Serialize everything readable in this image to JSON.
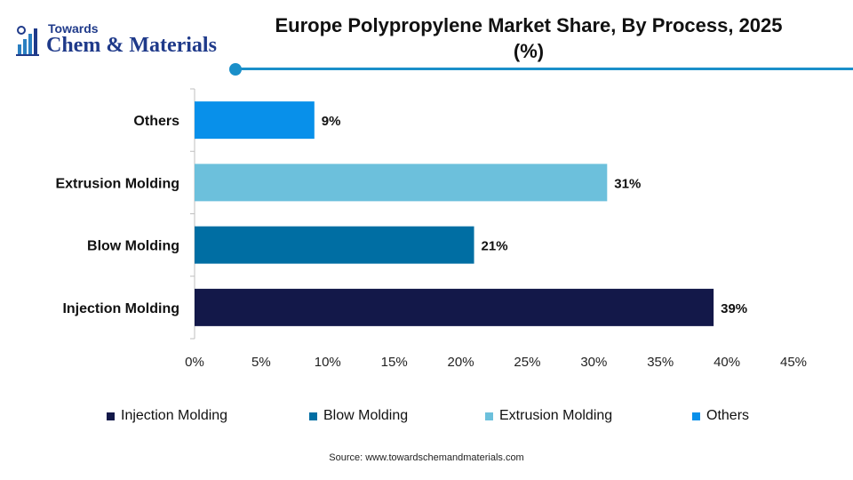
{
  "header": {
    "logo_top": "Towards",
    "logo_name": "Chem & Materials",
    "title": "Europe Polypropylene Market Share, By Process, 2025 (%)"
  },
  "chart_data": {
    "type": "bar",
    "orientation": "horizontal",
    "title": "Europe Polypropylene Market Share, By Process, 2025 (%)",
    "categories": [
      "Injection Molding",
      "Blow Molding",
      "Extrusion Molding",
      "Others"
    ],
    "values": [
      39,
      21,
      31,
      9
    ],
    "data_labels": [
      "39%",
      "21%",
      "31%",
      "9%"
    ],
    "colors": [
      "#131849",
      "#006ea3",
      "#6cc0dc",
      "#0890ea"
    ],
    "xlim": [
      0,
      45
    ],
    "xticks": [
      0,
      5,
      10,
      15,
      20,
      25,
      30,
      35,
      40,
      45
    ],
    "xtick_labels": [
      "0%",
      "5%",
      "10%",
      "15%",
      "20%",
      "25%",
      "30%",
      "35%",
      "40%",
      "45%"
    ],
    "xlabel": "",
    "ylabel": "",
    "grid": false,
    "legend_position": "bottom"
  },
  "legend": [
    {
      "label": "Injection Molding",
      "color": "#131849"
    },
    {
      "label": "Blow Molding",
      "color": "#006ea3"
    },
    {
      "label": "Extrusion Molding",
      "color": "#6cc0dc"
    },
    {
      "label": "Others",
      "color": "#0890ea"
    }
  ],
  "footer": {
    "source": "Source: www.towardschemandmaterials.com"
  }
}
